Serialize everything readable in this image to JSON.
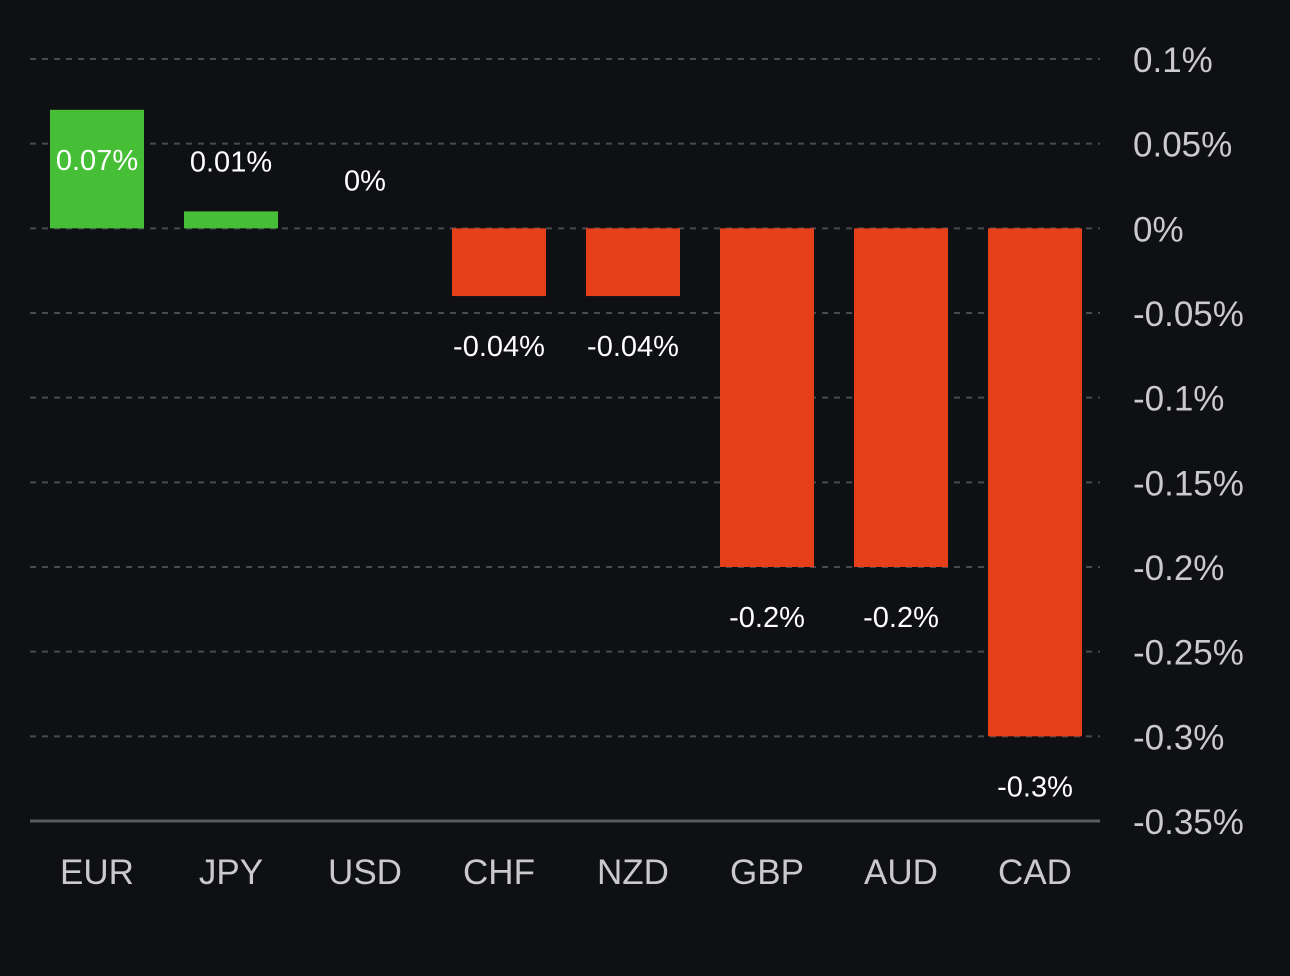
{
  "chart_data": {
    "type": "bar",
    "categories": [
      "EUR",
      "JPY",
      "USD",
      "CHF",
      "NZD",
      "GBP",
      "AUD",
      "CAD"
    ],
    "values": [
      0.07,
      0.01,
      0,
      -0.04,
      -0.04,
      -0.2,
      -0.2,
      -0.3
    ],
    "value_labels": [
      "0.07%",
      "0.01%",
      "0%",
      "-0.04%",
      "-0.04%",
      "-0.2%",
      "-0.2%",
      "-0.3%"
    ],
    "title": "",
    "xlabel": "",
    "ylabel": "",
    "ylim": [
      -0.35,
      0.1
    ],
    "yticks": [
      0.1,
      0.05,
      0,
      -0.05,
      -0.1,
      -0.15,
      -0.2,
      -0.25,
      -0.3,
      -0.35
    ],
    "ytick_labels": [
      "0.1%",
      "0.05%",
      "0%",
      "-0.05%",
      "-0.1%",
      "-0.15%",
      "-0.2%",
      "-0.25%",
      "-0.3%",
      "-0.35%"
    ],
    "y_axis_position": "right",
    "grid": true,
    "colors": {
      "positive": "#46bf36",
      "negative": "#e6401b",
      "background": "#0f1013"
    }
  }
}
